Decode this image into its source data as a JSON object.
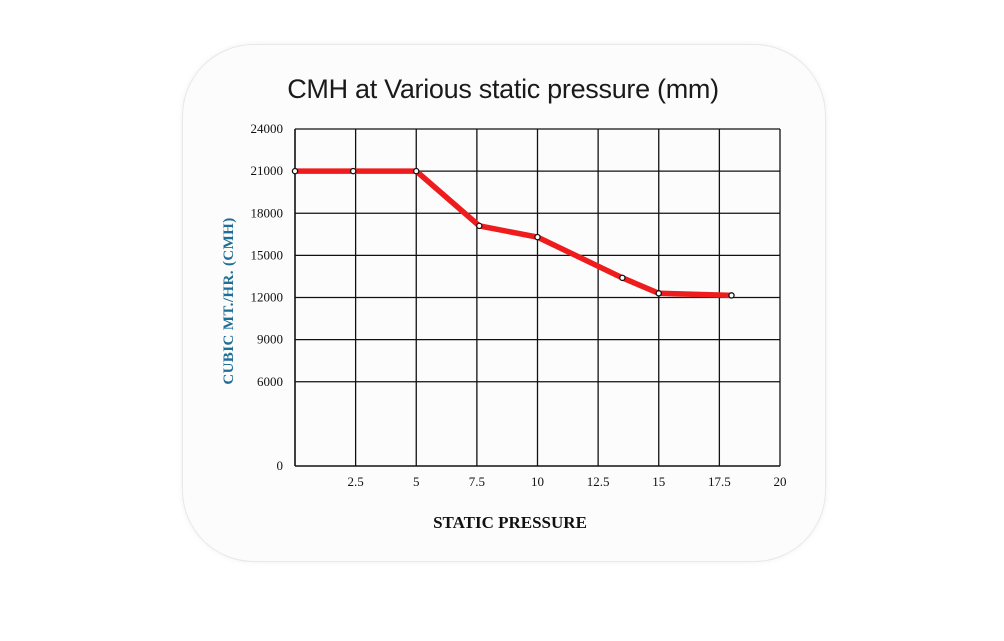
{
  "chart_data": {
    "type": "line",
    "title": "CMH at Various static pressure (mm)",
    "xlabel": "STATIC PRESSURE",
    "ylabel": "CUBIC MT./HR. (CMH)",
    "xlim": [
      0,
      20
    ],
    "ylim": [
      0,
      24000
    ],
    "x_ticks": [
      2.5,
      5,
      7.5,
      10,
      12.5,
      15,
      17.5,
      20
    ],
    "x_tick_labels": [
      "2.5",
      "5",
      "7.5",
      "10",
      "12.5",
      "15",
      "17.5",
      "20"
    ],
    "y_ticks": [
      0,
      6000,
      9000,
      12000,
      15000,
      18000,
      21000,
      24000
    ],
    "y_tick_labels": [
      "0",
      "6000",
      "9000",
      "12000",
      "15000",
      "18000",
      "21000",
      "24000"
    ],
    "grid": true,
    "series": [
      {
        "color": "#ee1c1c",
        "x": [
          0,
          2.4,
          5,
          7.6,
          10,
          13.5,
          15,
          18
        ],
        "y": [
          21000,
          21000,
          21000,
          17100,
          16300,
          13400,
          12300,
          12150
        ]
      }
    ]
  }
}
